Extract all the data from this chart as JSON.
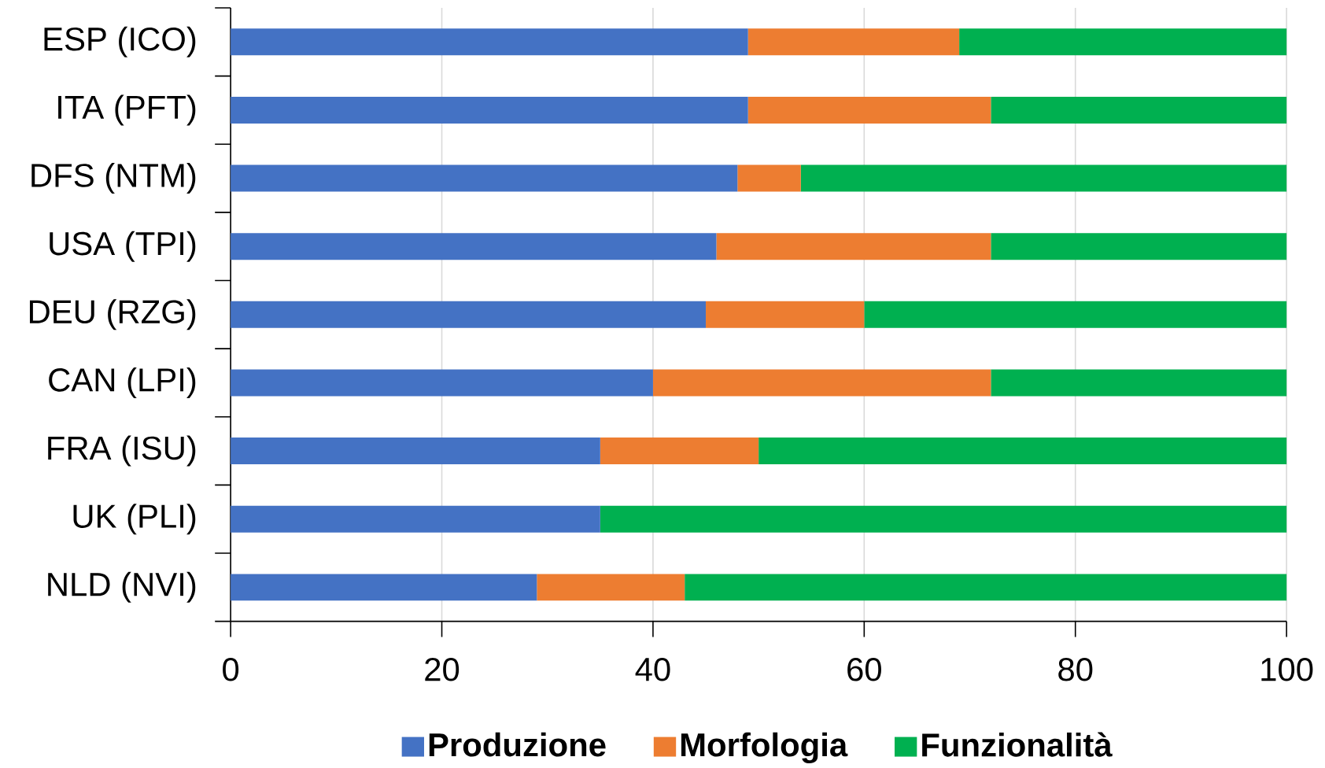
{
  "chart_data": {
    "type": "bar",
    "orientation": "horizontal",
    "stacked": true,
    "categories": [
      "ESP (ICO)",
      "ITA (PFT)",
      "DFS (NTM)",
      "USA (TPI)",
      "DEU (RZG)",
      "CAN (LPI)",
      "FRA (ISU)",
      "UK (PLI)",
      "NLD (NVI)"
    ],
    "series": [
      {
        "name": "Produzione",
        "color": "#4472c4",
        "values": [
          49,
          49,
          48,
          46,
          45,
          40,
          35,
          35,
          29
        ]
      },
      {
        "name": "Morfologia",
        "color": "#ed7d31",
        "values": [
          20,
          23,
          6,
          26,
          15,
          32,
          15,
          0,
          14
        ]
      },
      {
        "name": "Funzionalità",
        "color": "#00b050",
        "values": [
          31,
          28,
          46,
          28,
          40,
          28,
          50,
          65,
          57
        ]
      }
    ],
    "xlim": [
      0,
      100
    ],
    "xticks": [
      0,
      20,
      40,
      60,
      80,
      100
    ],
    "grid": "x",
    "legend": "bottom"
  }
}
